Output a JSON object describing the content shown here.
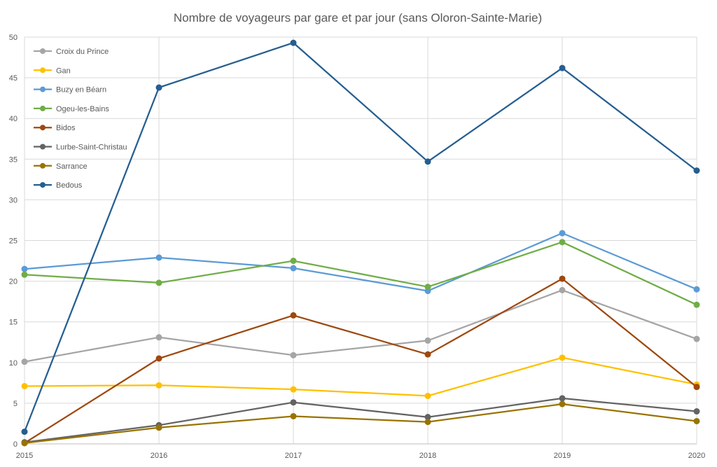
{
  "chart_data": {
    "type": "line",
    "title": "Nombre de voyageurs par gare et par jour (sans Oloron-Sainte-Marie)",
    "xlabel": "",
    "ylabel": "",
    "x": [
      "2015",
      "2016",
      "2017",
      "2018",
      "2019",
      "2020"
    ],
    "ylim": [
      0,
      50
    ],
    "yticks": [
      0,
      5,
      10,
      15,
      20,
      25,
      30,
      35,
      40,
      45,
      50
    ],
    "grid": true,
    "legend_position": "top-left",
    "series": [
      {
        "name": "Croix du Prince",
        "color": "#A5A5A5",
        "values": [
          10.1,
          13.1,
          10.9,
          12.7,
          18.9,
          12.9
        ]
      },
      {
        "name": "Gan",
        "color": "#FFC000",
        "values": [
          7.1,
          7.2,
          6.7,
          5.9,
          10.6,
          7.3
        ]
      },
      {
        "name": "Buzy en Béarn",
        "color": "#5B9BD5",
        "values": [
          21.5,
          22.9,
          21.6,
          18.8,
          25.9,
          19.0
        ]
      },
      {
        "name": "Ogeu-les-Bains",
        "color": "#70AD47",
        "values": [
          20.8,
          19.8,
          22.5,
          19.3,
          24.8,
          17.1
        ]
      },
      {
        "name": "Bidos",
        "color": "#9E480E",
        "values": [
          0.1,
          10.5,
          15.8,
          11.0,
          20.3,
          7.0
        ]
      },
      {
        "name": "Lurbe-Saint-Christau",
        "color": "#636363",
        "values": [
          0.2,
          2.3,
          5.1,
          3.3,
          5.6,
          4.0
        ]
      },
      {
        "name": "Sarrance",
        "color": "#997300",
        "values": [
          0.1,
          2.0,
          3.4,
          2.7,
          4.9,
          2.8
        ]
      },
      {
        "name": "Bedous",
        "color": "#255E91",
        "values": [
          1.5,
          43.8,
          49.3,
          34.7,
          46.2,
          33.6
        ]
      }
    ]
  }
}
